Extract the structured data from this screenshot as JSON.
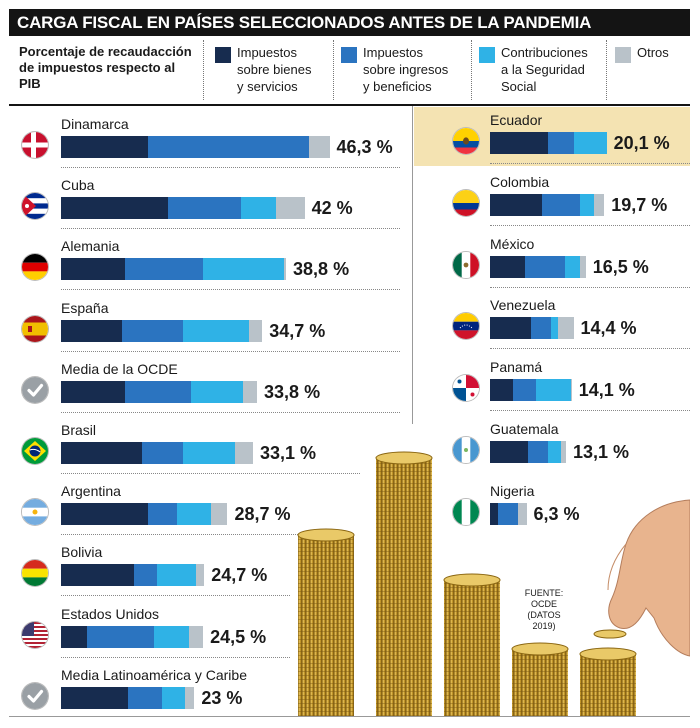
{
  "title": "CARGA FISCAL EN PAÍSES SELECCIONADOS ANTES DE LA PANDEMIA",
  "legend": {
    "description": "Porcentaje de recaudacción de impuestos respecto al PIB",
    "items": [
      {
        "label": "Impuestos\nsobre bienes\ny servicios",
        "color": "#172c4f"
      },
      {
        "label": "Impuestos\nsobre ingresos\ny beneficios",
        "color": "#2b74c0"
      },
      {
        "label": "Contribuciones\na la Seguridad\nSocial",
        "color": "#2fb2e6"
      },
      {
        "label": "Otros",
        "color": "#b9c2c9"
      }
    ]
  },
  "source": "FUENTE:\nOCDE\n(DATOS\n2019)",
  "chart_data": {
    "type": "bar",
    "orientation": "horizontal",
    "stacked": true,
    "unit": "%",
    "series_names": [
      "Impuestos sobre bienes y servicios",
      "Impuestos sobre ingresos y beneficios",
      "Contribuciones a la Seguridad Social",
      "Otros"
    ],
    "colors": [
      "#172c4f",
      "#2b74c0",
      "#2fb2e6",
      "#b9c2c9"
    ],
    "highlighted": "Ecuador",
    "countries": [
      {
        "name": "Dinamarca",
        "value_label": "46,3 %",
        "total": 46.3,
        "segments": [
          15.0,
          27.8,
          0.0,
          3.5
        ],
        "flag": "denmark-flag-icon",
        "column": "left"
      },
      {
        "name": "Cuba",
        "value_label": "42 %",
        "total": 42.0,
        "segments": [
          18.5,
          12.5,
          6.0,
          5.0
        ],
        "flag": "cuba-flag-icon",
        "column": "left"
      },
      {
        "name": "Alemania",
        "value_label": "38,8 %",
        "total": 38.8,
        "segments": [
          11.0,
          13.5,
          14.0,
          0.3
        ],
        "flag": "germany-flag-icon",
        "column": "left"
      },
      {
        "name": "España",
        "value_label": "34,7 %",
        "total": 34.7,
        "segments": [
          10.5,
          10.5,
          11.5,
          2.2
        ],
        "flag": "spain-flag-icon",
        "column": "left"
      },
      {
        "name": "Media de la OCDE",
        "value_label": "33,8 %",
        "total": 33.8,
        "segments": [
          11.0,
          11.5,
          8.8,
          2.5
        ],
        "flag": "check-icon",
        "column": "left"
      },
      {
        "name": "Brasil",
        "value_label": "33,1 %",
        "total": 33.1,
        "segments": [
          14.0,
          7.0,
          9.0,
          3.1
        ],
        "flag": "brazil-flag-icon",
        "column": "left"
      },
      {
        "name": "Argentina",
        "value_label": "28,7 %",
        "total": 28.7,
        "segments": [
          15.0,
          5.0,
          5.8,
          2.9
        ],
        "flag": "argentina-flag-icon",
        "column": "left"
      },
      {
        "name": "Bolivia",
        "value_label": "24,7 %",
        "total": 24.7,
        "segments": [
          12.5,
          4.0,
          6.7,
          1.5
        ],
        "flag": "bolivia-flag-icon",
        "column": "left"
      },
      {
        "name": "Estados Unidos",
        "value_label": "24,5 %",
        "total": 24.5,
        "segments": [
          4.5,
          11.5,
          6.0,
          2.5
        ],
        "flag": "usa-flag-icon",
        "column": "left"
      },
      {
        "name": "Media Latinoamérica y Caribe",
        "value_label": "23 %",
        "total": 23.0,
        "segments": [
          11.5,
          6.0,
          3.9,
          1.6
        ],
        "flag": "check-icon",
        "column": "left"
      },
      {
        "name": "Ecuador",
        "value_label": "20,1 %",
        "total": 20.1,
        "segments": [
          10.0,
          4.5,
          5.6,
          0.0
        ],
        "flag": "ecuador-flag-icon",
        "column": "right"
      },
      {
        "name": "Colombia",
        "value_label": "19,7 %",
        "total": 19.7,
        "segments": [
          9.0,
          6.5,
          2.5,
          1.7
        ],
        "flag": "colombia-flag-icon",
        "column": "right"
      },
      {
        "name": "México",
        "value_label": "16,5 %",
        "total": 16.5,
        "segments": [
          6.0,
          7.0,
          2.5,
          1.0
        ],
        "flag": "mexico-flag-icon",
        "column": "right"
      },
      {
        "name": "Venezuela",
        "value_label": "14,4 %",
        "total": 14.4,
        "segments": [
          7.0,
          3.5,
          1.2,
          2.7
        ],
        "flag": "venezuela-flag-icon",
        "column": "right"
      },
      {
        "name": "Panamá",
        "value_label": "14,1 %",
        "total": 14.1,
        "segments": [
          4.0,
          4.0,
          6.0,
          0.1
        ],
        "flag": "panama-flag-icon",
        "column": "right"
      },
      {
        "name": "Guatemala",
        "value_label": "13,1 %",
        "total": 13.1,
        "segments": [
          6.5,
          3.5,
          2.3,
          0.8
        ],
        "flag": "guatemala-flag-icon",
        "column": "right"
      },
      {
        "name": "Nigeria",
        "value_label": "6,3 %",
        "total": 6.3,
        "segments": [
          1.4,
          3.5,
          0.0,
          1.4
        ],
        "flag": "nigeria-flag-icon",
        "column": "right"
      }
    ]
  }
}
